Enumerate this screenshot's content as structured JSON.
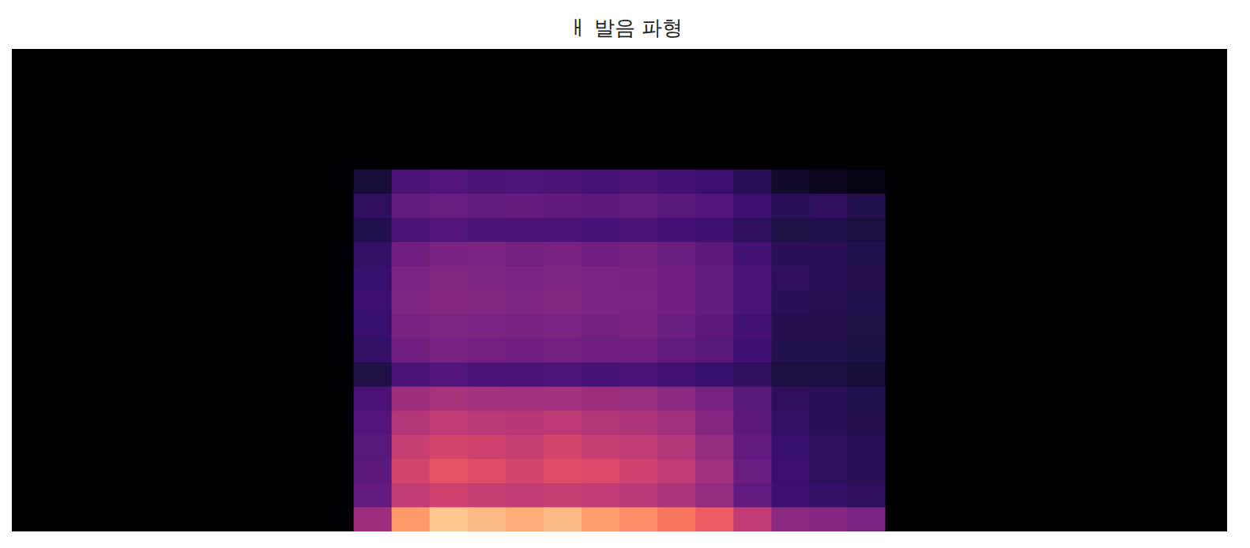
{
  "chart_data": {
    "type": "heatmap",
    "title": "ㅐ 발음 파형",
    "tick_labels": false,
    "zlim": [
      0,
      100
    ],
    "cells": [
      [
        0,
        0,
        0,
        0,
        0,
        0,
        0,
        0,
        0,
        0,
        0,
        0,
        0,
        0,
        0,
        0,
        0,
        0,
        0,
        0,
        0,
        0,
        0,
        0,
        0,
        0,
        0,
        0,
        0,
        0,
        0,
        0
      ],
      [
        0,
        0,
        0,
        0,
        0,
        0,
        0,
        0,
        0,
        0,
        0,
        0,
        0,
        0,
        0,
        0,
        0,
        0,
        0,
        0,
        0,
        0,
        0,
        0,
        0,
        0,
        0,
        0,
        0,
        0,
        0,
        0
      ],
      [
        0,
        0,
        0,
        0,
        0,
        0,
        0,
        0,
        0,
        0,
        0,
        0,
        0,
        0,
        0,
        0,
        0,
        0,
        0,
        0,
        0,
        0,
        0,
        0,
        0,
        0,
        0,
        0,
        0,
        0,
        0,
        0
      ],
      [
        0,
        0,
        0,
        0,
        0,
        0,
        0,
        0,
        0,
        0,
        0,
        0,
        0,
        0,
        0,
        0,
        0,
        0,
        0,
        0,
        0,
        0,
        0,
        0,
        0,
        0,
        0,
        0,
        0,
        0,
        0,
        0
      ],
      [
        0,
        0,
        0,
        0,
        0,
        0,
        0,
        0,
        0,
        0,
        0,
        0,
        0,
        0,
        0,
        0,
        0,
        0,
        0,
        0,
        0,
        0,
        0,
        0,
        0,
        0,
        0,
        0,
        0,
        0,
        0,
        0
      ],
      [
        0,
        0,
        0,
        0,
        0,
        0,
        0,
        0,
        0,
        10,
        30,
        32,
        30,
        31,
        30,
        29,
        30,
        28,
        25,
        18,
        8,
        5,
        3,
        0,
        0,
        0,
        0,
        0,
        0,
        0,
        0,
        0
      ],
      [
        0,
        0,
        0,
        0,
        0,
        0,
        0,
        0,
        0,
        20,
        38,
        40,
        38,
        39,
        37,
        36,
        38,
        35,
        32,
        25,
        18,
        20,
        15,
        0,
        0,
        0,
        0,
        0,
        0,
        0,
        0,
        0
      ],
      [
        0,
        0,
        0,
        0,
        0,
        0,
        0,
        0,
        0,
        15,
        30,
        32,
        30,
        30,
        30,
        29,
        30,
        28,
        26,
        20,
        14,
        15,
        12,
        0,
        0,
        0,
        0,
        0,
        0,
        0,
        0,
        0
      ],
      [
        0,
        0,
        0,
        0,
        0,
        0,
        0,
        0,
        0,
        22,
        42,
        44,
        45,
        43,
        44,
        42,
        43,
        40,
        36,
        28,
        18,
        18,
        15,
        0,
        0,
        0,
        0,
        0,
        0,
        0,
        0,
        0
      ],
      [
        0,
        0,
        0,
        0,
        0,
        0,
        0,
        0,
        0,
        24,
        45,
        47,
        46,
        45,
        46,
        45,
        44,
        42,
        38,
        30,
        20,
        18,
        16,
        0,
        0,
        0,
        0,
        0,
        0,
        0,
        0,
        0
      ],
      [
        0,
        0,
        0,
        0,
        0,
        0,
        0,
        0,
        0,
        25,
        46,
        48,
        47,
        46,
        47,
        45,
        45,
        42,
        38,
        30,
        18,
        17,
        15,
        0,
        0,
        0,
        0,
        0,
        0,
        0,
        0,
        0
      ],
      [
        0,
        0,
        0,
        0,
        0,
        0,
        0,
        0,
        0,
        24,
        44,
        46,
        45,
        44,
        45,
        43,
        44,
        40,
        36,
        28,
        16,
        16,
        14,
        0,
        0,
        0,
        0,
        0,
        0,
        0,
        0,
        0
      ],
      [
        0,
        0,
        0,
        0,
        0,
        0,
        0,
        0,
        0,
        22,
        42,
        44,
        43,
        42,
        43,
        41,
        42,
        38,
        34,
        26,
        15,
        15,
        13,
        0,
        0,
        0,
        0,
        0,
        0,
        0,
        0,
        0
      ],
      [
        0,
        0,
        0,
        0,
        0,
        0,
        0,
        0,
        0,
        14,
        30,
        32,
        30,
        30,
        31,
        29,
        30,
        27,
        24,
        20,
        12,
        12,
        10,
        0,
        0,
        0,
        0,
        0,
        0,
        0,
        0,
        0
      ],
      [
        0,
        0,
        0,
        0,
        0,
        0,
        0,
        0,
        0,
        30,
        55,
        58,
        57,
        56,
        57,
        55,
        54,
        50,
        44,
        34,
        20,
        18,
        15,
        0,
        0,
        0,
        0,
        0,
        0,
        0,
        0,
        0
      ],
      [
        0,
        0,
        0,
        0,
        0,
        0,
        0,
        0,
        0,
        32,
        62,
        66,
        64,
        63,
        65,
        62,
        60,
        56,
        48,
        36,
        22,
        18,
        16,
        0,
        0,
        0,
        0,
        0,
        0,
        0,
        0,
        0
      ],
      [
        0,
        0,
        0,
        0,
        0,
        0,
        0,
        0,
        0,
        34,
        68,
        72,
        70,
        68,
        72,
        68,
        66,
        62,
        52,
        38,
        24,
        20,
        18,
        0,
        0,
        0,
        0,
        0,
        0,
        0,
        0,
        0
      ],
      [
        0,
        0,
        0,
        0,
        0,
        0,
        0,
        0,
        0,
        36,
        72,
        78,
        76,
        72,
        76,
        74,
        70,
        66,
        56,
        40,
        25,
        20,
        18,
        0,
        0,
        0,
        0,
        0,
        0,
        0,
        0,
        0
      ],
      [
        0,
        0,
        0,
        0,
        0,
        0,
        0,
        0,
        0,
        38,
        66,
        70,
        68,
        66,
        68,
        66,
        64,
        60,
        52,
        38,
        26,
        22,
        20,
        0,
        0,
        0,
        0,
        0,
        0,
        0,
        0,
        0
      ],
      [
        0,
        0,
        0,
        0,
        0,
        0,
        0,
        0,
        0,
        55,
        92,
        96,
        95,
        94,
        95,
        93,
        90,
        86,
        80,
        66,
        50,
        48,
        45,
        0,
        0,
        0,
        0,
        0,
        0,
        0,
        0,
        0
      ]
    ]
  }
}
